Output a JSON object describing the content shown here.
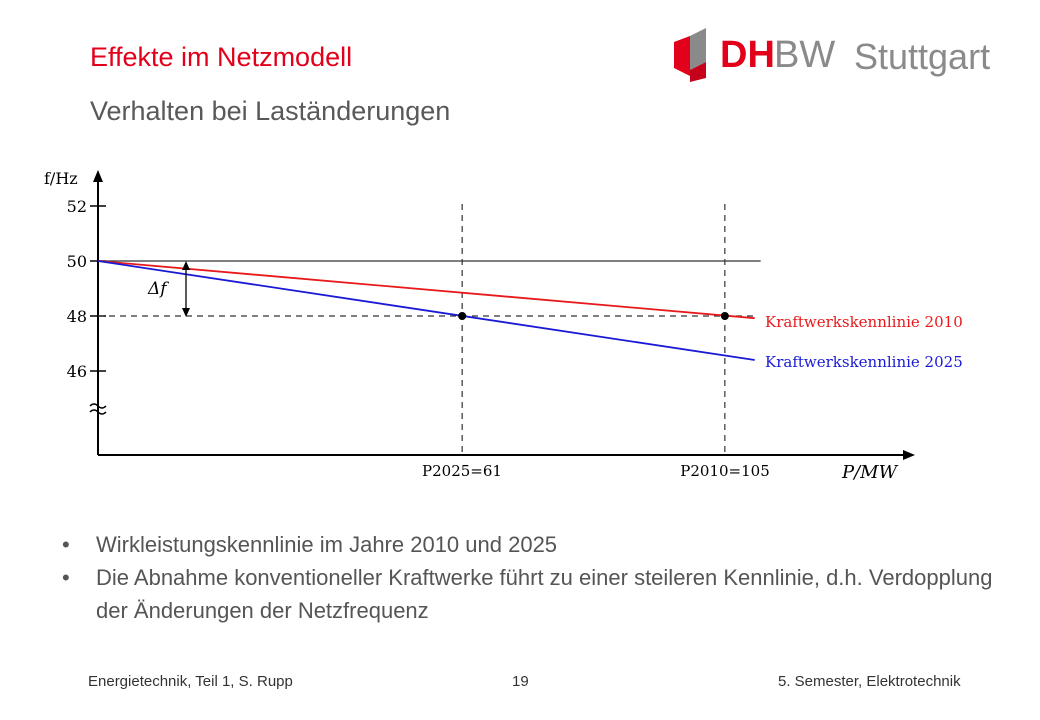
{
  "slide": {
    "title": "Effekte im Netzmodell",
    "subtitle": "Verhalten bei Laständerungen"
  },
  "logo": {
    "dh": "DH",
    "bw": "BW",
    "city": "Stuttgart",
    "brand_color": "#e2001a",
    "gray_color": "#8a8a8a"
  },
  "chart_data": {
    "type": "line",
    "ylabel": "f/Hz",
    "xlabel": "P/MW",
    "y_ticks": [
      "52",
      "50",
      "48",
      "46"
    ],
    "x_ticks": [
      "P2025=61",
      "P2010=105"
    ],
    "delta_label": "Δf",
    "series": [
      {
        "name": "Kraftwerkskennlinie 2010",
        "color": "#e8191b",
        "points": [
          [
            0,
            50
          ],
          [
            110,
            47.92
          ]
        ]
      },
      {
        "name": "Kraftwerkskennlinie 2025",
        "color": "#1a1ad6",
        "points": [
          [
            0,
            50
          ],
          [
            110,
            46.4
          ]
        ]
      }
    ],
    "reference_lines": {
      "nominal_frequency": 50,
      "operating_frequency": 48
    },
    "operating_points": [
      [
        61,
        48
      ],
      [
        105,
        48
      ]
    ]
  },
  "bullets": [
    "Wirkleistungskennlinie im Jahre 2010 und 2025",
    "Die Abnahme konventioneller Kraftwerke führt zu einer steileren Kennlinie, d.h. Verdopplung der Änderungen der Netzfrequenz"
  ],
  "footer": {
    "left": "Energietechnik, Teil 1, S. Rupp",
    "center": "19",
    "right": "5. Semester, Elektrotechnik"
  }
}
